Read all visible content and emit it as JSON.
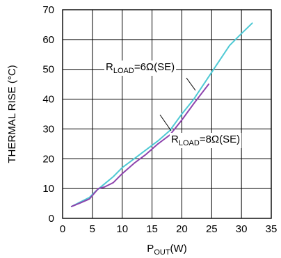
{
  "chart_data": {
    "type": "line",
    "title": "",
    "xlabel": {
      "main": "P",
      "sub": "OUT",
      "unit": "(W)"
    },
    "ylabel": "THERMAL RISE (°C)",
    "xlim": [
      0,
      35
    ],
    "ylim": [
      0,
      70
    ],
    "xticks": [
      "0",
      "5",
      "10",
      "15",
      "20",
      "25",
      "30",
      "35"
    ],
    "yticks": [
      "0",
      "10",
      "20",
      "30",
      "40",
      "50",
      "60",
      "70"
    ],
    "grid": true,
    "legend": "none",
    "series": [
      {
        "name_parts": {
          "main": "R",
          "sub": "LOAD",
          "rest": "=6Ω(SE)"
        },
        "color": "#4ec9d4",
        "points": [
          [
            1.5,
            4
          ],
          [
            3,
            5.5
          ],
          [
            4.5,
            7
          ],
          [
            5.5,
            9
          ],
          [
            7,
            11.5
          ],
          [
            8.5,
            14
          ],
          [
            10,
            17
          ],
          [
            12,
            20
          ],
          [
            14,
            23
          ],
          [
            16,
            26
          ],
          [
            18,
            29.5
          ],
          [
            20,
            35
          ],
          [
            22,
            40
          ],
          [
            24,
            46
          ],
          [
            26,
            52
          ],
          [
            28,
            58
          ],
          [
            30,
            62
          ],
          [
            31.8,
            65.5
          ]
        ]
      },
      {
        "name_parts": {
          "main": "R",
          "sub": "LOAD",
          "rest": "=8Ω(SE)"
        },
        "color": "#8e44ad",
        "points": [
          [
            1.5,
            4
          ],
          [
            3,
            5.2
          ],
          [
            4.5,
            6.5
          ],
          [
            6,
            10
          ],
          [
            7,
            10.5
          ],
          [
            8.5,
            12
          ],
          [
            10,
            15
          ],
          [
            12,
            18.5
          ],
          [
            14,
            21.5
          ],
          [
            16,
            25
          ],
          [
            18,
            28
          ],
          [
            20,
            33
          ],
          [
            22,
            38.5
          ],
          [
            24.5,
            45
          ]
        ]
      }
    ]
  }
}
